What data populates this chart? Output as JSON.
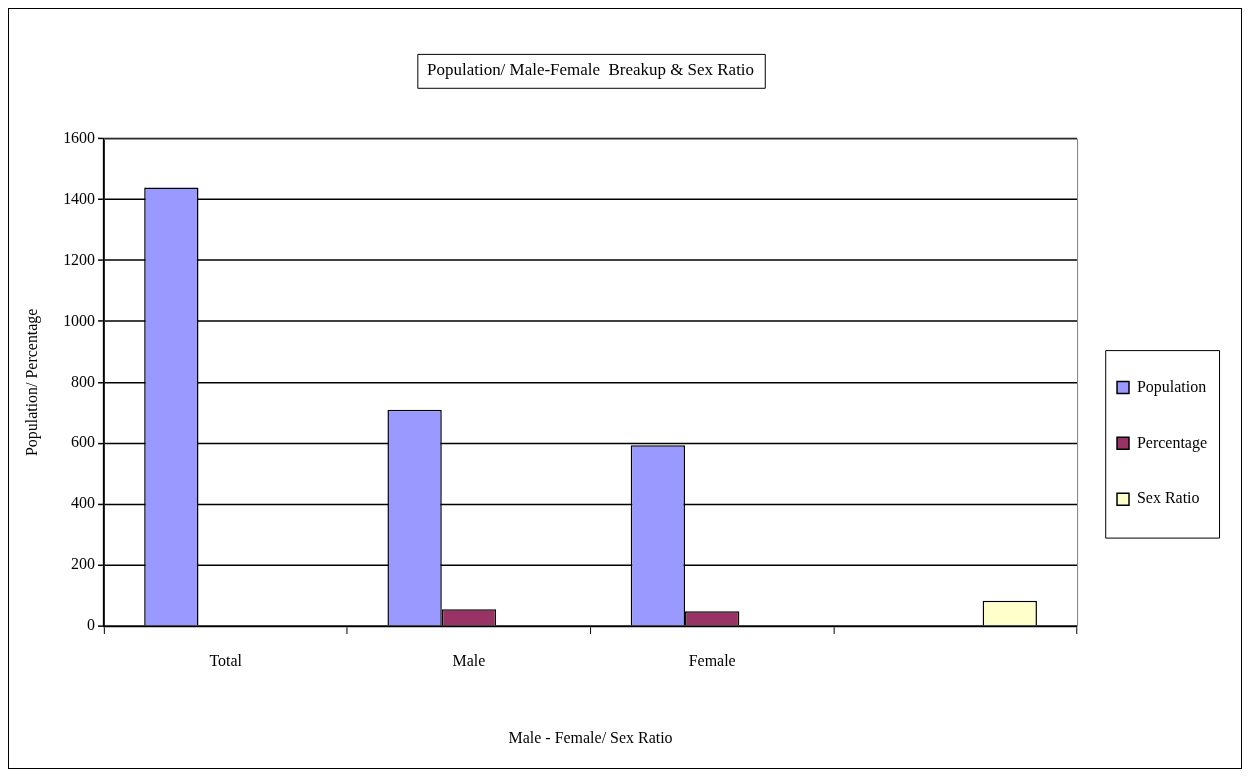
{
  "chart_data": {
    "type": "bar",
    "title": "Population/ Male-Female  Breakup & Sex Ratio",
    "xlabel": "Male - Female/ Sex Ratio",
    "ylabel": "Population/ Percentage",
    "categories": [
      "Total",
      "Male",
      "Female",
      null
    ],
    "series": [
      {
        "name": "Population",
        "color": "#9999ff",
        "values": [
          1440,
          710,
          593,
          null
        ]
      },
      {
        "name": "Percentage",
        "color": "#993366",
        "values": [
          null,
          55,
          48,
          null
        ]
      },
      {
        "name": "Sex Ratio",
        "color": "#ffffcc",
        "values": [
          null,
          null,
          null,
          83
        ]
      }
    ],
    "ylim": [
      0,
      1600
    ],
    "yticks": [
      0,
      200,
      400,
      600,
      800,
      1000,
      1200,
      1400,
      1600
    ],
    "grid": "y",
    "legend": "right"
  }
}
